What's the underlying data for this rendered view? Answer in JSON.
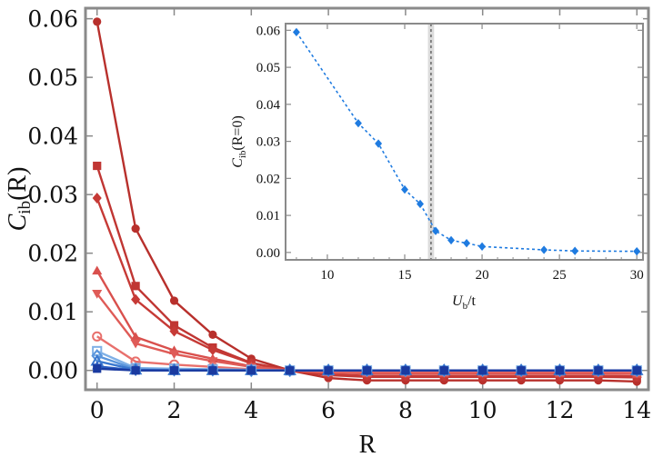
{
  "chart_data": [
    {
      "type": "line",
      "title": "",
      "xlabel": "R",
      "ylabel": "C_ib(R)",
      "ylabel_main": "C",
      "ylabel_sub": "ib",
      "ylabel_tail": "(R)",
      "xlim": [
        -0.3,
        14.3
      ],
      "ylim": [
        -0.0033,
        0.0618
      ],
      "xticks": [
        0,
        2,
        4,
        6,
        8,
        10,
        12,
        14
      ],
      "xtick_labels": [
        "0",
        "2",
        "4",
        "6",
        "8",
        "10",
        "12",
        "14"
      ],
      "yticks": [
        0,
        0.01,
        0.02,
        0.03,
        0.04,
        0.05,
        0.06
      ],
      "ytick_labels": [
        "0.00",
        "0.01",
        "0.02",
        "0.03",
        "0.04",
        "0.05",
        "0.06"
      ],
      "x": [
        0,
        1,
        2,
        3,
        4,
        5,
        6,
        7,
        8,
        9,
        10,
        11,
        12,
        13,
        14
      ],
      "series": [
        {
          "name": "circle",
          "marker": "circle",
          "color": "#b8302c",
          "values": [
            0.0595,
            0.0242,
            0.0119,
            0.0061,
            0.002,
            0.0,
            -0.0013,
            -0.0017,
            -0.0017,
            -0.0017,
            -0.0017,
            -0.0017,
            -0.0017,
            -0.0017,
            -0.0019
          ]
        },
        {
          "name": "square",
          "marker": "square",
          "color": "#c03633",
          "values": [
            0.0349,
            0.0144,
            0.0077,
            0.0039,
            0.0013,
            0.0,
            -0.0008,
            -0.0011,
            -0.0011,
            -0.0011,
            -0.0011,
            -0.0011,
            -0.0011,
            -0.0011,
            -0.0012
          ]
        },
        {
          "name": "diamond",
          "marker": "diamond",
          "color": "#c63a36",
          "values": [
            0.0294,
            0.0121,
            0.0067,
            0.0035,
            0.0012,
            0.0,
            -0.0007,
            -0.0009,
            -0.0009,
            -0.0009,
            -0.0009,
            -0.0009,
            -0.0009,
            -0.0009,
            -0.001
          ]
        },
        {
          "name": "triangle-up",
          "marker": "triangle-up",
          "color": "#d9504d",
          "values": [
            0.017,
            0.0057,
            0.0034,
            0.002,
            0.0007,
            0.0,
            -0.0004,
            -0.0005,
            -0.0005,
            -0.0005,
            -0.0005,
            -0.0005,
            -0.0005,
            -0.0005,
            -0.0006
          ]
        },
        {
          "name": "triangle-down",
          "marker": "triangle-down",
          "color": "#df5b57",
          "values": [
            0.0131,
            0.0046,
            0.0028,
            0.0016,
            0.0006,
            0.0,
            -0.0003,
            -0.0004,
            -0.0004,
            -0.0004,
            -0.0004,
            -0.0004,
            -0.0004,
            -0.0004,
            -0.0005
          ]
        },
        {
          "name": "open-circle",
          "marker": "open-circle",
          "color": "#e8706c",
          "values": [
            0.0058,
            0.0015,
            0.001,
            0.0006,
            0.0002,
            0.0,
            -0.0001,
            -0.0001,
            -0.0001,
            -0.0001,
            -0.0001,
            -0.0001,
            -0.0001,
            -0.0001,
            -0.0002
          ]
        },
        {
          "name": "open-square",
          "marker": "open-square",
          "color": "#7fb0e6",
          "values": [
            0.0033,
            0.0004,
            0.0003,
            0.0002,
            0.0001,
            0.0,
            0.0,
            0.0,
            0.0,
            0.0,
            0.0,
            0.0,
            0.0,
            0.0,
            0.0
          ]
        },
        {
          "name": "open-diamond",
          "marker": "open-diamond",
          "color": "#5a95dc",
          "values": [
            0.0025,
            0.0002,
            0.0001,
            0.0001,
            0.0,
            0.0,
            0.0,
            0.0,
            0.0,
            0.0,
            0.0,
            0.0,
            0.0,
            0.0,
            0.0
          ]
        },
        {
          "name": "open-triangle-up",
          "marker": "open-triangle-up",
          "color": "#3a78cf",
          "values": [
            0.0016,
            0.0001,
            0.0,
            0.0,
            0.0,
            0.0,
            0.0,
            0.0,
            0.0,
            0.0,
            0.0,
            0.0,
            0.0,
            0.0,
            0.0
          ]
        },
        {
          "name": "star",
          "marker": "star",
          "color": "#2a5cc0",
          "values": [
            0.0007,
            0.0,
            0.0,
            0.0,
            0.0,
            0.0,
            0.0,
            0.0,
            0.0,
            0.0,
            0.0,
            0.0,
            0.0,
            0.0,
            0.0
          ]
        },
        {
          "name": "filled-square-dark",
          "marker": "square",
          "color": "#1a3aa0",
          "values": [
            0.0003,
            0.0,
            0.0,
            0.0,
            0.0,
            0.0,
            0.0,
            0.0,
            0.0,
            0.0,
            0.0,
            0.0,
            0.0,
            0.0,
            0.0
          ]
        }
      ]
    },
    {
      "type": "line",
      "title": "",
      "xlabel": "U_b/t",
      "xlabel_main": "U",
      "xlabel_sub": "b",
      "xlabel_tail": "/t",
      "ylabel": "C_ib(R=0)",
      "ylabel_main": "C",
      "ylabel_sub": "ib",
      "ylabel_tail": "(R=0)",
      "xlim": [
        7.3,
        30.4
      ],
      "ylim": [
        -0.002,
        0.0618
      ],
      "xticks": [
        10,
        15,
        20,
        25,
        30
      ],
      "xtick_labels": [
        "10",
        "15",
        "20",
        "25",
        "30"
      ],
      "yticks": [
        0,
        0.01,
        0.02,
        0.03,
        0.04,
        0.05,
        0.06
      ],
      "ytick_labels": [
        "0.00",
        "0.01",
        "0.02",
        "0.03",
        "0.04",
        "0.05",
        "0.06"
      ],
      "vline": 16.7,
      "vband": [
        16.5,
        16.9
      ],
      "series": [
        {
          "name": "C_ib(R=0)",
          "marker": "diamond",
          "color": "#1f7be0",
          "x": [
            8,
            12,
            13.3,
            15,
            16,
            17,
            18,
            19,
            20,
            24,
            26,
            30
          ],
          "values": [
            0.0595,
            0.0349,
            0.0294,
            0.017,
            0.0131,
            0.0058,
            0.0033,
            0.0025,
            0.0016,
            0.0007,
            0.0004,
            0.0003
          ]
        }
      ]
    }
  ]
}
